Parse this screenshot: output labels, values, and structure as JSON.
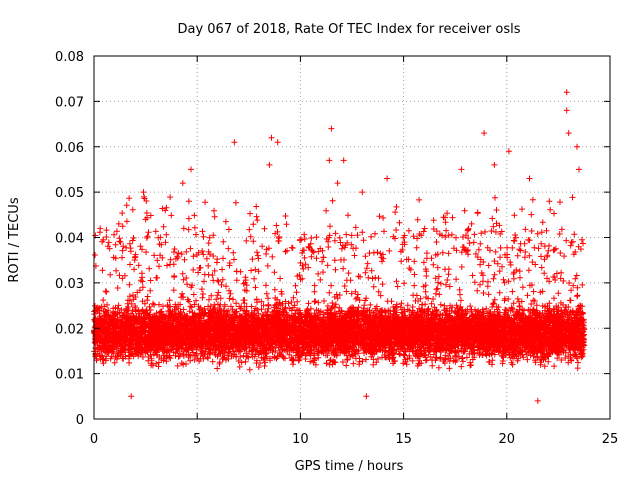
{
  "chart_data": {
    "type": "scatter",
    "title": "Day 067 of 2018, Rate Of TEC Index for receiver osls",
    "xlabel": "GPS time / hours",
    "ylabel": "ROTI / TECUs",
    "xlim": [
      0,
      25
    ],
    "ylim": [
      0,
      0.08
    ],
    "xticks": [
      0,
      5,
      10,
      15,
      20,
      25
    ],
    "xtick_labels": [
      "0",
      "5",
      "10",
      "15",
      "20",
      "25"
    ],
    "yticks": [
      0,
      0.01,
      0.02,
      0.03,
      0.04,
      0.05,
      0.06,
      0.07,
      0.08
    ],
    "ytick_labels": [
      "0",
      "0.01",
      "0.02",
      "0.03",
      "0.04",
      "0.05",
      "0.06",
      "0.07",
      "0.08"
    ],
    "grid": true,
    "marker": "+",
    "marker_color": "#ff0000",
    "x_data_range": [
      0,
      23.75
    ],
    "bulk_band": [
      0.01,
      0.03
    ],
    "series": [
      {
        "name": "ROTI",
        "description_points": [
          {
            "x": 0.3,
            "y": 0.042
          },
          {
            "x": 1.2,
            "y": 0.043
          },
          {
            "x": 2.4,
            "y": 0.05
          },
          {
            "x": 2.5,
            "y": 0.044
          },
          {
            "x": 4.3,
            "y": 0.052
          },
          {
            "x": 4.7,
            "y": 0.055
          },
          {
            "x": 4.6,
            "y": 0.048
          },
          {
            "x": 6.8,
            "y": 0.061
          },
          {
            "x": 8.6,
            "y": 0.062
          },
          {
            "x": 8.9,
            "y": 0.061
          },
          {
            "x": 8.5,
            "y": 0.056
          },
          {
            "x": 11.5,
            "y": 0.064
          },
          {
            "x": 11.4,
            "y": 0.057
          },
          {
            "x": 12.1,
            "y": 0.057
          },
          {
            "x": 11.8,
            "y": 0.052
          },
          {
            "x": 13.0,
            "y": 0.05
          },
          {
            "x": 14.2,
            "y": 0.053
          },
          {
            "x": 17.8,
            "y": 0.055
          },
          {
            "x": 18.9,
            "y": 0.063
          },
          {
            "x": 19.4,
            "y": 0.056
          },
          {
            "x": 20.1,
            "y": 0.059
          },
          {
            "x": 21.1,
            "y": 0.053
          },
          {
            "x": 22.9,
            "y": 0.072
          },
          {
            "x": 22.9,
            "y": 0.068
          },
          {
            "x": 23.0,
            "y": 0.063
          },
          {
            "x": 23.4,
            "y": 0.06
          },
          {
            "x": 23.5,
            "y": 0.055
          },
          {
            "x": 21.5,
            "y": 0.004
          },
          {
            "x": 13.2,
            "y": 0.005
          },
          {
            "x": 1.8,
            "y": 0.005
          }
        ]
      }
    ]
  }
}
